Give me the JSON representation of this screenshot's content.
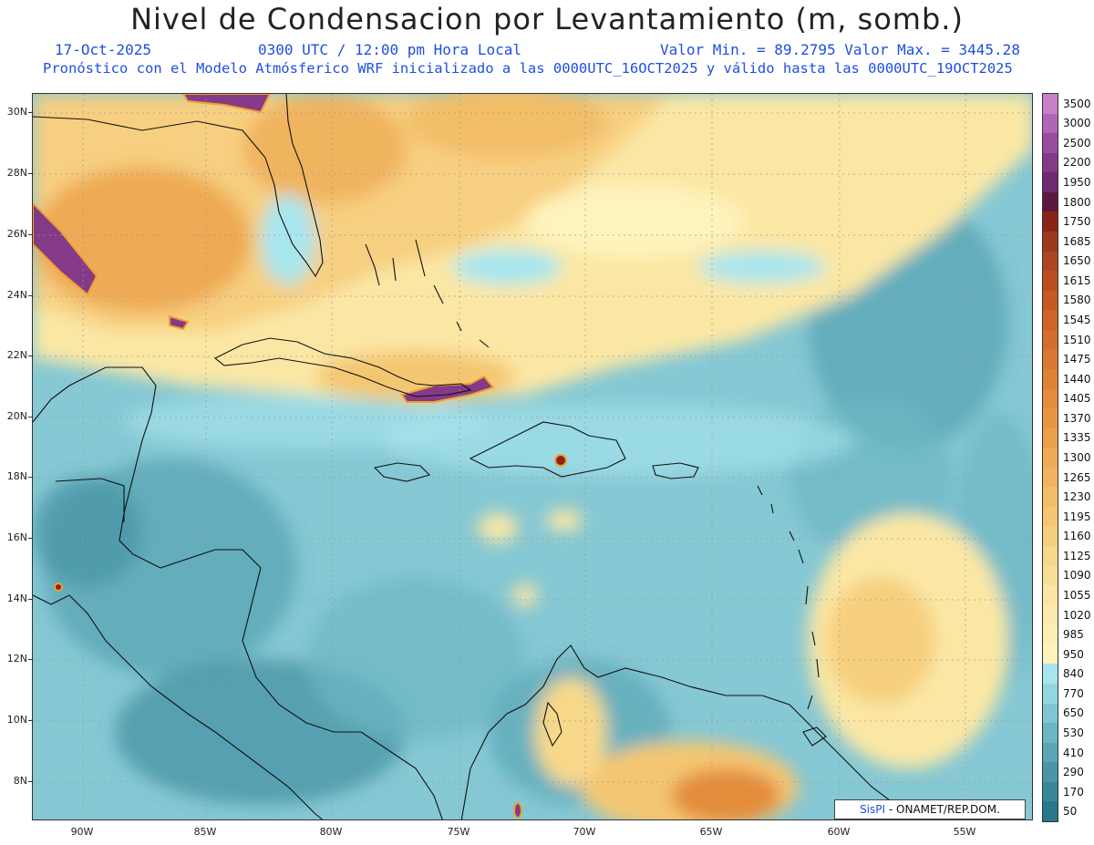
{
  "header": {
    "title": "Nivel de Condensacion por Levantamiento (m, somb.)",
    "date": "17-Oct-2025",
    "time": "0300 UTC / 12:00 pm Hora Local",
    "min_max": "Valor Min. = 89.2795  Valor Max. = 3445.28",
    "forecast": "Pronóstico con el Modelo Atmósferico WRF inicializado a las 0000UTC_16OCT2025 y válido hasta las  0000UTC_19OCT2025"
  },
  "axes": {
    "lat_labels": [
      "30N",
      "28N",
      "26N",
      "24N",
      "22N",
      "20N",
      "18N",
      "16N",
      "14N",
      "12N",
      "10N",
      "8N"
    ],
    "lon_labels": [
      "90W",
      "85W",
      "80W",
      "75W",
      "70W",
      "65W",
      "60W",
      "55W"
    ]
  },
  "legend": {
    "levels": [
      "3500",
      "3000",
      "2500",
      "2200",
      "1950",
      "1800",
      "1750",
      "1685",
      "1650",
      "1615",
      "1580",
      "1545",
      "1510",
      "1475",
      "1440",
      "1405",
      "1370",
      "1335",
      "1300",
      "1265",
      "1230",
      "1195",
      "1160",
      "1125",
      "1090",
      "1055",
      "1020",
      "985",
      "950",
      "840",
      "770",
      "650",
      "530",
      "410",
      "290",
      "170",
      "50"
    ],
    "colors": [
      "#c77fc7",
      "#b066b4",
      "#9a4c9e",
      "#853a88",
      "#6e2a70",
      "#5a1a40",
      "#8b2318",
      "#9e3a1c",
      "#ad4520",
      "#b94e22",
      "#c45a24",
      "#cd6428",
      "#d46e2c",
      "#da7830",
      "#df8234",
      "#e38c3a",
      "#e79642",
      "#eba04a",
      "#eeaa54",
      "#f0b45e",
      "#f2be68",
      "#f4c672",
      "#f6cf7e",
      "#f8d88a",
      "#f9df96",
      "#fae6a2",
      "#fbebac",
      "#fcefb4",
      "#fef3bc",
      "#a8e6ee",
      "#92d6e0",
      "#7ec6d2",
      "#6cb6c4",
      "#5aa6b6",
      "#4a96a8",
      "#3a869a",
      "#2a768c"
    ]
  },
  "credit": {
    "brand": "SisPI",
    "org": "- ONAMET/REP.DOM."
  }
}
